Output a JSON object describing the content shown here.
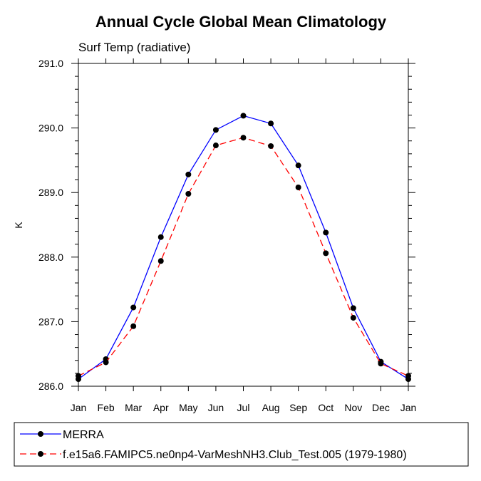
{
  "chart_data": {
    "type": "line",
    "title": "Annual Cycle Global Mean Climatology",
    "subtitle": "Surf Temp (radiative)",
    "xlabel": "",
    "ylabel": "K",
    "categories": [
      "Jan",
      "Feb",
      "Mar",
      "Apr",
      "May",
      "Jun",
      "Jul",
      "Aug",
      "Sep",
      "Oct",
      "Nov",
      "Dec",
      "Jan"
    ],
    "ylim": [
      286.0,
      291.0
    ],
    "yticks": [
      "286.0",
      "287.0",
      "288.0",
      "289.0",
      "290.0",
      "291.0"
    ],
    "series": [
      {
        "name": "MERRA",
        "color": "#0000ff",
        "style": "solid",
        "values": [
          286.11,
          286.42,
          287.22,
          288.31,
          289.28,
          289.97,
          290.19,
          290.07,
          289.42,
          288.38,
          287.21,
          286.38,
          286.11
        ]
      },
      {
        "name": "f.e15a6.FAMIPC5.ne0np4-VarMeshNH3.Club_Test.005 (1979-1980)",
        "color": "#ff0000",
        "style": "dashed",
        "values": [
          286.16,
          286.37,
          286.93,
          287.94,
          288.98,
          289.73,
          289.85,
          289.72,
          289.08,
          288.06,
          287.06,
          286.35,
          286.16
        ]
      }
    ]
  }
}
